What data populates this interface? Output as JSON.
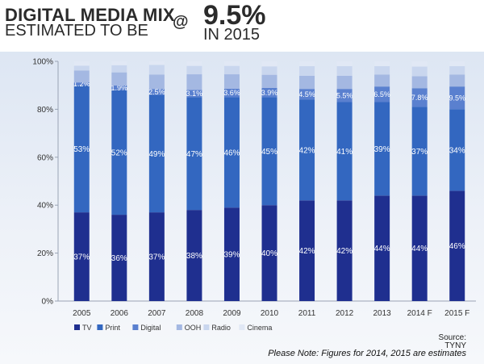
{
  "header": {
    "title": "DIGITAL MEDIA MIX",
    "subtitle": "ESTIMATED TO BE",
    "at": "@",
    "big_value": "9.5%",
    "big_year": "IN 2015"
  },
  "footer": {
    "source_label": "Source:",
    "source_name": "TYNY",
    "note": "Please Note: Figures for 2014, 2015 are estimates"
  },
  "colors": {
    "TV": "#1f2f8f",
    "Print": "#3367c0",
    "Digital": "#5a80cf",
    "OOH": "#a4b8e2",
    "Radio": "#c9d6ee",
    "Cinema": "#e1e8f5"
  },
  "chart_data": {
    "type": "bar",
    "stacked": true,
    "categories": [
      "2005",
      "2006",
      "2007",
      "2008",
      "2009",
      "2010",
      "2011",
      "2012",
      "2013",
      "2014 F",
      "2015 F"
    ],
    "series": [
      {
        "name": "TV",
        "values": [
          37,
          36,
          37,
          38,
          39,
          40,
          42,
          42,
          44,
          44,
          46
        ],
        "labels": [
          "37%",
          "36%",
          "37%",
          "38%",
          "39%",
          "40%",
          "42%",
          "42%",
          "44%",
          "44%",
          "46%"
        ]
      },
      {
        "name": "Print",
        "values": [
          53,
          52,
          49,
          47,
          46,
          45,
          42,
          41,
          39,
          37,
          34
        ],
        "labels": [
          "53%",
          "52%",
          "49%",
          "47%",
          "46%",
          "45%",
          "42%",
          "41%",
          "39%",
          "37%",
          "34%"
        ]
      },
      {
        "name": "Digital",
        "values": [
          1.2,
          1.9,
          2.5,
          3.1,
          3.6,
          3.9,
          4.5,
          5.5,
          6.5,
          7.8,
          9.5
        ],
        "labels": [
          "1.2%",
          "1.9%",
          "2.5%",
          "3.1%",
          "3.6%",
          "3.9%",
          "4.5%",
          "5.5%",
          "6.5%",
          "7.8%",
          "9.5%"
        ]
      },
      {
        "name": "OOH",
        "values": [
          5,
          5.5,
          6,
          6.5,
          6,
          5.5,
          5.5,
          5.5,
          5,
          5,
          5
        ]
      },
      {
        "name": "Radio",
        "values": [
          2,
          3,
          4,
          3.5,
          3.5,
          3.5,
          4,
          4,
          3.5,
          4,
          3.5
        ]
      },
      {
        "name": "Cinema",
        "values": [
          1.8,
          1.6,
          1.5,
          1.9,
          1.9,
          2.1,
          2.0,
          2.0,
          2.0,
          2.2,
          2.0
        ]
      }
    ],
    "ylim": [
      0,
      100
    ],
    "yticks": [
      "0%",
      "20%",
      "40%",
      "60%",
      "80%",
      "100%"
    ],
    "legend_position": "bottom-left",
    "grid": false
  }
}
